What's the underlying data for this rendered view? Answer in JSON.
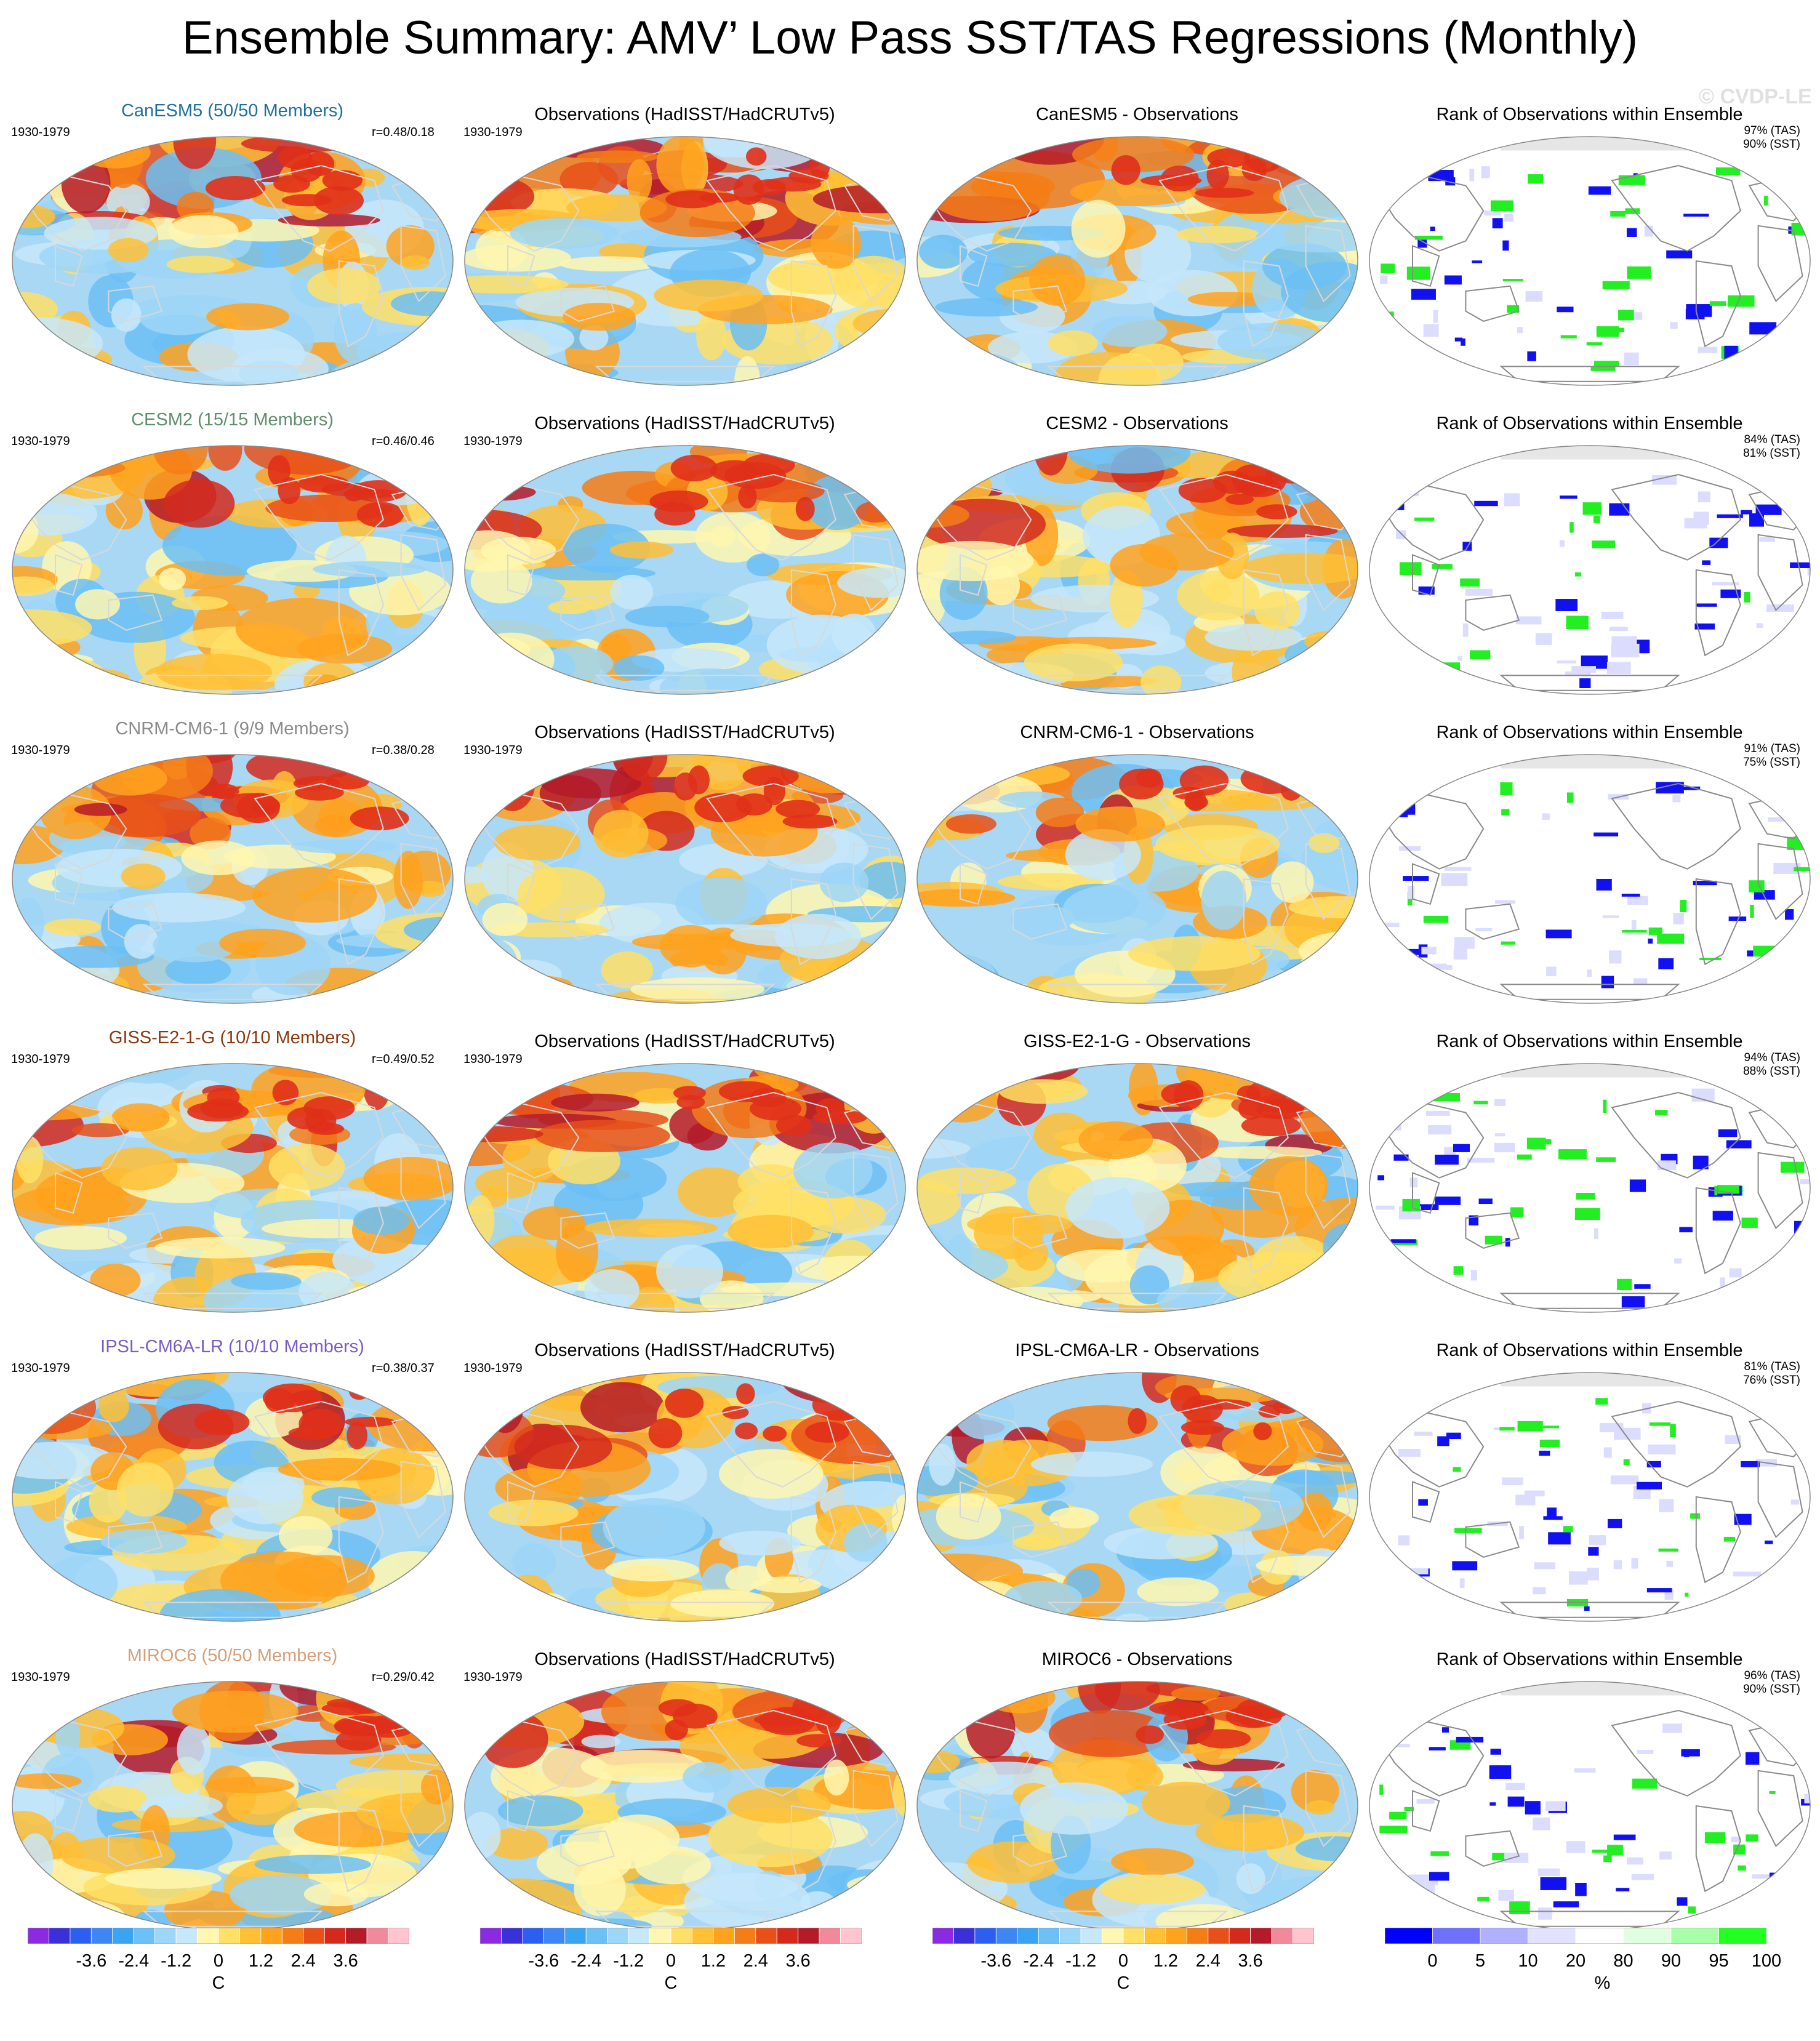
{
  "title": "Ensemble Summary: AMV’ Low Pass SST/TAS Regressions (Monthly)",
  "watermark": "© CVDP-LE",
  "rows": [
    {
      "model": "CanESM5 (50/50 Members)",
      "model_color": "#1e6fa0",
      "period": "1930-1979",
      "r": "r=0.48/0.18",
      "obs_title": "Observations (HadISST/HadCRUTv5)",
      "obs_period": "1930-1979",
      "diff_title": "CanESM5 - Observations",
      "rank_title": "Rank of Observations within Ensemble",
      "rank_tas": "97% (TAS)",
      "rank_sst": "90% (SST)"
    },
    {
      "model": "CESM2 (15/15 Members)",
      "model_color": "#5e8f6a",
      "period": "1930-1979",
      "r": "r=0.46/0.46",
      "obs_title": "Observations (HadISST/HadCRUTv5)",
      "obs_period": "1930-1979",
      "diff_title": "CESM2 - Observations",
      "rank_title": "Rank of Observations within Ensemble",
      "rank_tas": "84% (TAS)",
      "rank_sst": "81% (SST)"
    },
    {
      "model": "CNRM-CM6-1 (9/9 Members)",
      "model_color": "#8a8a8a",
      "period": "1930-1979",
      "r": "r=0.38/0.28",
      "obs_title": "Observations (HadISST/HadCRUTv5)",
      "obs_period": "1930-1979",
      "diff_title": "CNRM-CM6-1 - Observations",
      "rank_title": "Rank of Observations within Ensemble",
      "rank_tas": "91% (TAS)",
      "rank_sst": "75% (SST)"
    },
    {
      "model": "GISS-E2-1-G (10/10 Members)",
      "model_color": "#8b3a0e",
      "period": "1930-1979",
      "r": "r=0.49/0.52",
      "obs_title": "Observations (HadISST/HadCRUTv5)",
      "obs_period": "1930-1979",
      "diff_title": "GISS-E2-1-G - Observations",
      "rank_title": "Rank of Observations within Ensemble",
      "rank_tas": "94% (TAS)",
      "rank_sst": "88% (SST)"
    },
    {
      "model": "IPSL-CM6A-LR (10/10 Members)",
      "model_color": "#7c5cc4",
      "period": "1930-1979",
      "r": "r=0.38/0.37",
      "obs_title": "Observations (HadISST/HadCRUTv5)",
      "obs_period": "1930-1979",
      "diff_title": "IPSL-CM6A-LR - Observations",
      "rank_title": "Rank of Observations within Ensemble",
      "rank_tas": "81% (TAS)",
      "rank_sst": "76% (SST)"
    },
    {
      "model": "MIROC6 (50/50 Members)",
      "model_color": "#d4a07a",
      "period": "1930-1979",
      "r": "r=0.29/0.42",
      "obs_title": "Observations (HadISST/HadCRUTv5)",
      "obs_period": "1930-1979",
      "diff_title": "MIROC6 - Observations",
      "rank_title": "Rank of Observations within Ensemble",
      "rank_tas": "96% (TAS)",
      "rank_sst": "90% (SST)"
    }
  ],
  "colorbars": {
    "temp": {
      "ticks": [
        "-3.6",
        "-2.4",
        "-1.2",
        "0",
        "1.2",
        "2.4",
        "3.6"
      ],
      "unit": "C",
      "colors": [
        "#8a2be2",
        "#3b2fd8",
        "#2c5ff0",
        "#3f86f5",
        "#3aa4f2",
        "#6cc0f5",
        "#9dd6f7",
        "#c7e8fa",
        "#fff7b0",
        "#ffe066",
        "#ffc035",
        "#ffa21e",
        "#f57d18",
        "#e8501a",
        "#d42a1e",
        "#b41a28",
        "#f08a9a",
        "#ffc4cc"
      ]
    },
    "rank": {
      "ticks": [
        "0",
        "5",
        "10",
        "20",
        "80",
        "90",
        "95",
        "100"
      ],
      "unit": "%",
      "colors": [
        "#0000ff",
        "#7070ff",
        "#b0b0ff",
        "#e2e2ff",
        "#ffffff",
        "#e0ffe0",
        "#a8ffa8",
        "#22ff22"
      ]
    }
  },
  "map_colors": {
    "land_outline": "#d8d8d8",
    "map_border": "#888888",
    "cold_mid": "#a9d8f5",
    "warm_mid": "#ffe680",
    "hot": "#e0301a",
    "cold": "#2f6fe0",
    "rank_low": "#1010f0",
    "rank_high": "#22ee22",
    "rank_pale": "#dcdcff",
    "rank_antarctic": "#e6e6e6"
  }
}
